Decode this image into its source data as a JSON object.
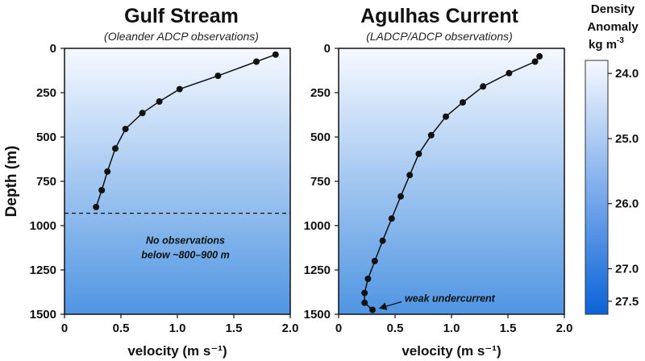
{
  "chart_data": [
    {
      "type": "line",
      "title": "Gulf Stream",
      "subtitle": "(Oleander ADCP observations)",
      "xlabel": "velocity (m s⁻¹)",
      "ylabel": "Depth (m)",
      "xlim": [
        0,
        2.0
      ],
      "ylim": [
        1500,
        0
      ],
      "x_ticks": [
        "0",
        "0.5",
        "1.0",
        "1.5",
        "2.0"
      ],
      "y_ticks": [
        "0",
        "250",
        "500",
        "750",
        "1000",
        "1250",
        "1500"
      ],
      "series": [
        {
          "points": [
            {
              "x": 1.87,
              "y": 35
            },
            {
              "x": 1.7,
              "y": 75
            },
            {
              "x": 1.36,
              "y": 155
            },
            {
              "x": 1.02,
              "y": 230
            },
            {
              "x": 0.84,
              "y": 300
            },
            {
              "x": 0.69,
              "y": 365
            },
            {
              "x": 0.54,
              "y": 455
            },
            {
              "x": 0.45,
              "y": 565
            },
            {
              "x": 0.38,
              "y": 695
            },
            {
              "x": 0.33,
              "y": 800
            },
            {
              "x": 0.28,
              "y": 895
            }
          ]
        }
      ],
      "reference_line": {
        "y": 930,
        "style": "dashed"
      },
      "annotation": [
        "No observations",
        "below ~800–900 m"
      ]
    },
    {
      "type": "line",
      "title": "Agulhas Current",
      "subtitle": "(LADCP/ADCP observations)",
      "xlabel": "velocity (m s⁻¹)",
      "xlim": [
        0,
        2.0
      ],
      "ylim": [
        1500,
        0
      ],
      "x_ticks": [
        "0",
        "0.5",
        "1.0",
        "1.5",
        "2.0"
      ],
      "y_ticks": [
        "0",
        "250",
        "500",
        "750",
        "1000",
        "1250",
        "1500"
      ],
      "series": [
        {
          "points": [
            {
              "x": 1.78,
              "y": 45
            },
            {
              "x": 1.74,
              "y": 75
            },
            {
              "x": 1.51,
              "y": 140
            },
            {
              "x": 1.28,
              "y": 215
            },
            {
              "x": 1.1,
              "y": 305
            },
            {
              "x": 0.95,
              "y": 385
            },
            {
              "x": 0.82,
              "y": 490
            },
            {
              "x": 0.71,
              "y": 595
            },
            {
              "x": 0.63,
              "y": 715
            },
            {
              "x": 0.55,
              "y": 835
            },
            {
              "x": 0.47,
              "y": 960
            },
            {
              "x": 0.39,
              "y": 1085
            },
            {
              "x": 0.32,
              "y": 1200
            },
            {
              "x": 0.26,
              "y": 1300
            },
            {
              "x": 0.23,
              "y": 1380
            },
            {
              "x": 0.23,
              "y": 1435
            },
            {
              "x": 0.3,
              "y": 1475
            }
          ]
        }
      ],
      "annotation": "weak undercurrent",
      "annotation_target": {
        "x": 0.3,
        "y": 1475
      }
    }
  ],
  "colorbar": {
    "title": [
      "Density",
      "Anomaly",
      "kg m"
    ],
    "title_superscript": "-3",
    "ticks": [
      {
        "value": 24.0,
        "label": "24.0"
      },
      {
        "value": 25.0,
        "label": "25.0"
      },
      {
        "value": 26.0,
        "label": "26.0"
      },
      {
        "value": 27.0,
        "label": "27.0"
      },
      {
        "value": 27.5,
        "label": "27.5"
      }
    ],
    "range": [
      23.8,
      27.7
    ],
    "color_low": "#f6f9ff",
    "color_high": "#0a63d8"
  },
  "colors": {
    "line": "#111111",
    "marker": "#111111",
    "background_top": "#f6f9ff",
    "background_bottom": "#4f95e2"
  }
}
